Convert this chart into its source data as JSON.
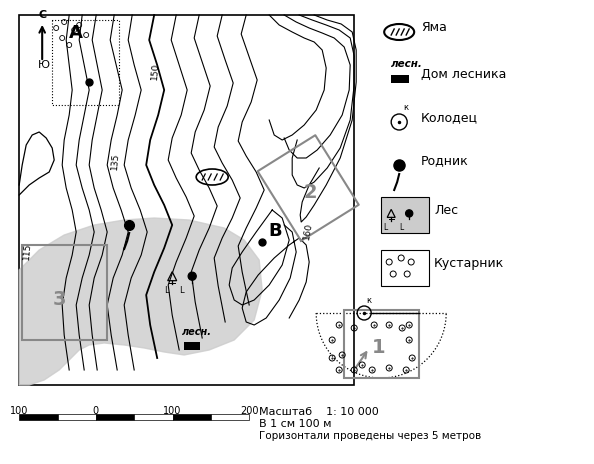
{
  "bg_color": "#ffffff",
  "forest_fill": "#cccccc",
  "contour_color": "#000000",
  "map_border": "#000000",
  "grey_border": "#888888",
  "title_scale": "Масштаб    1: 10 000",
  "title_cm": "В 1 см 100 м",
  "title_horiz": "Горизонтали проведены через 5 метров",
  "legend_labels": [
    "Яма",
    "Дом лесника",
    "Колодец",
    "Родник",
    "Лес",
    "Кустарник"
  ],
  "scale_bar_labels": [
    "100",
    "0",
    "100",
    "200"
  ],
  "map_xlim": [
    0,
    570
  ],
  "map_ylim": [
    0,
    444
  ]
}
